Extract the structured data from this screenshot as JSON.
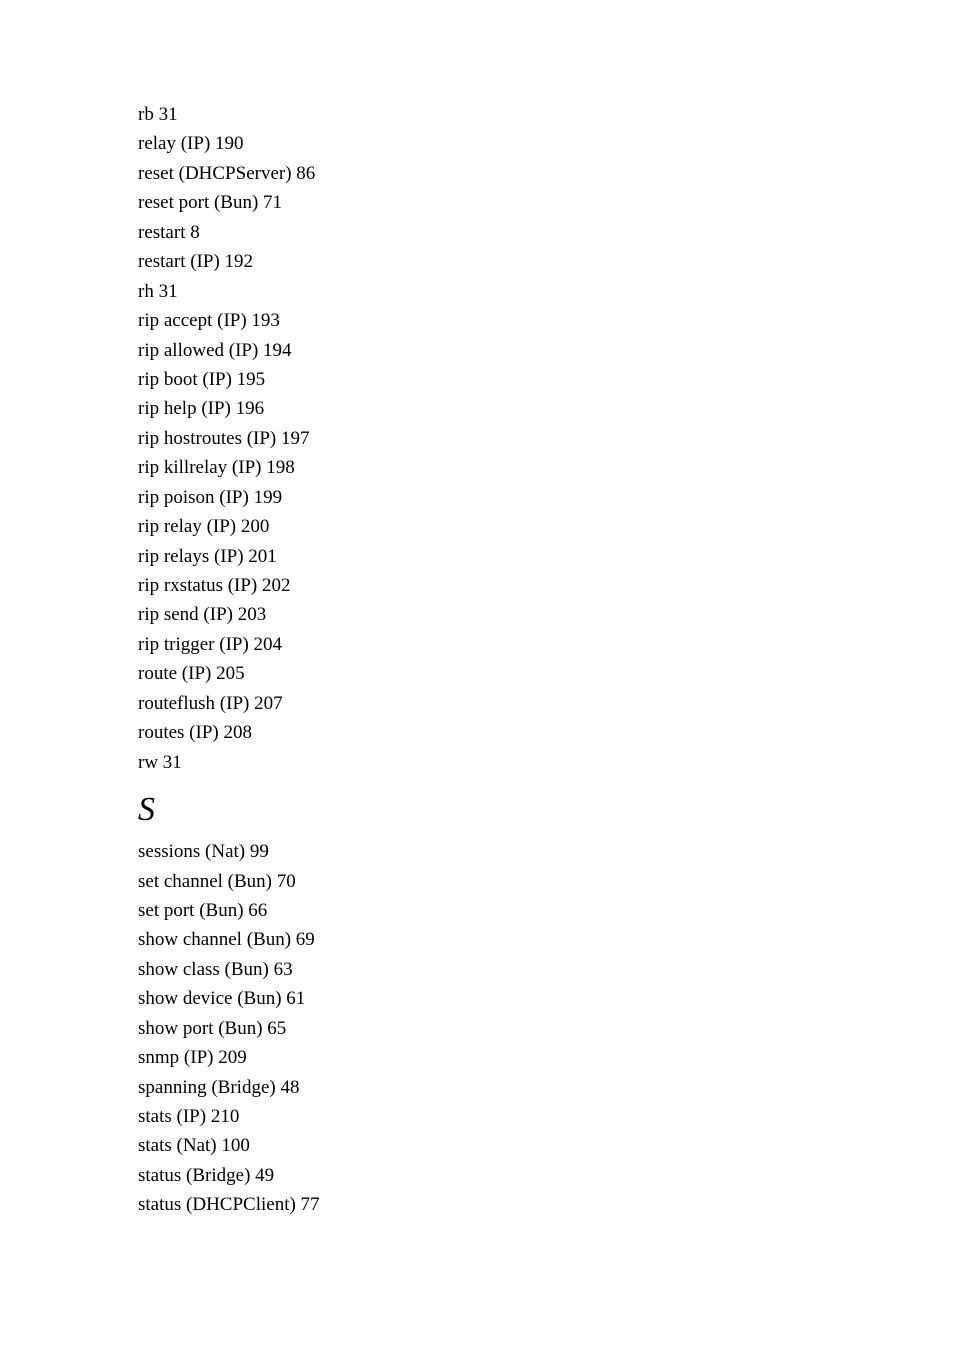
{
  "index": {
    "r_entries": [
      "rb 31",
      "relay (IP) 190",
      "reset (DHCPServer) 86",
      "reset port (Bun) 71",
      "restart 8",
      "restart (IP) 192",
      "rh 31",
      "rip accept (IP) 193",
      "rip allowed (IP) 194",
      "rip boot (IP) 195",
      "rip help (IP) 196",
      "rip hostroutes (IP) 197",
      "rip killrelay (IP) 198",
      "rip poison (IP) 199",
      "rip relay (IP) 200",
      "rip relays (IP) 201",
      "rip rxstatus (IP) 202",
      "rip send (IP) 203",
      "rip trigger (IP) 204",
      "route (IP) 205",
      "routeflush (IP) 207",
      "routes (IP) 208",
      "rw 31"
    ],
    "s_heading": "S",
    "s_entries": [
      "sessions (Nat) 99",
      "set channel (Bun) 70",
      "set port (Bun) 66",
      "show channel (Bun) 69",
      "show class (Bun) 63",
      "show device (Bun) 61",
      "show port (Bun) 65",
      "snmp (IP) 209",
      "spanning (Bridge) 48",
      "stats (IP) 210",
      "stats (Nat) 100",
      "status (Bridge) 49",
      "status (DHCPClient) 77"
    ]
  },
  "typography": {
    "body_font": "Times New Roman",
    "body_fontsize": 19,
    "heading_fontsize": 34,
    "heading_style": "italic",
    "text_color": "#000000",
    "background_color": "#ffffff"
  }
}
